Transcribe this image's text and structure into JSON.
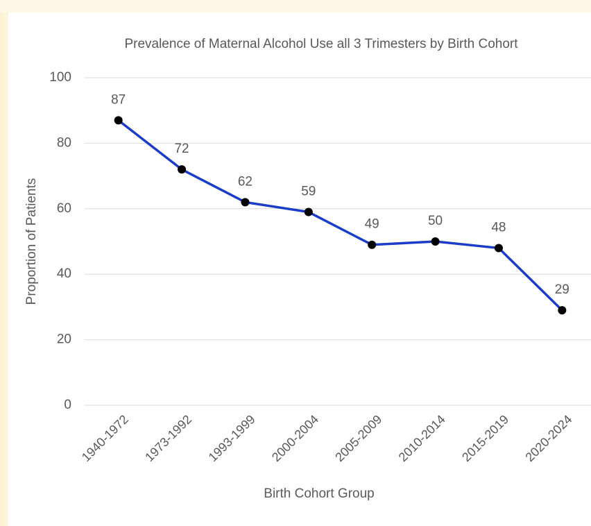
{
  "chart_data": {
    "type": "line",
    "title": "Prevalence of Maternal Alcohol Use  all 3 Trimesters by Birth Cohort",
    "x_label": "Birth Cohort Group",
    "y_label": "Proportion of Patients",
    "categories": [
      "1940-1972",
      "1973-1992",
      "1993-1999",
      "2000-2004",
      "2005-2009",
      "2010-2014",
      "2015-2019",
      "2020-2024"
    ],
    "series": [
      {
        "name": "Proportion of Patients",
        "color": "#1a3cc8",
        "values": [
          87,
          72,
          62,
          59,
          49,
          50,
          48,
          29
        ]
      }
    ],
    "ylim": [
      0,
      100
    ],
    "yticks": [
      0,
      20,
      40,
      60,
      80,
      100
    ],
    "grid": true,
    "marker_color": "#000000"
  }
}
